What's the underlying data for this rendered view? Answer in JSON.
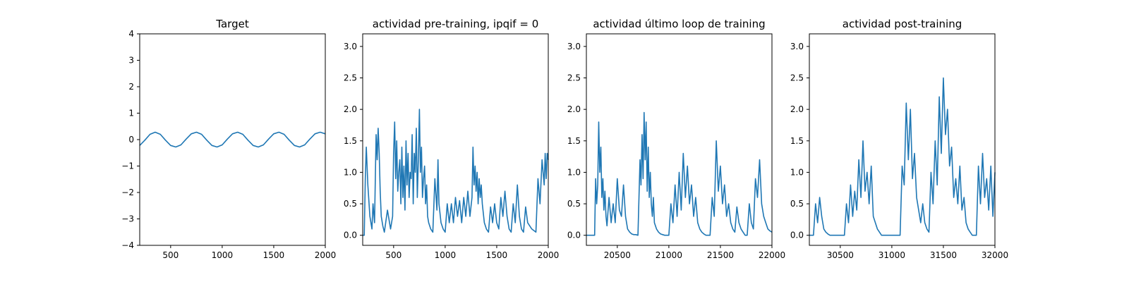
{
  "figure": {
    "background": "#ffffff",
    "line_color": "#1f77b4"
  },
  "chart_data": [
    {
      "type": "line",
      "title": "Target",
      "xlabel": "",
      "ylabel": "",
      "xlim": [
        200,
        2000
      ],
      "ylim": [
        -4,
        4
      ],
      "xticks": [
        500,
        1000,
        1500,
        2000
      ],
      "yticks": [
        -4,
        -3,
        -2,
        -1,
        0,
        1,
        2,
        3,
        4
      ],
      "series": [
        {
          "name": "target",
          "x": [
            200,
            250,
            300,
            350,
            400,
            450,
            500,
            550,
            600,
            650,
            700,
            750,
            800,
            850,
            900,
            950,
            1000,
            1050,
            1100,
            1150,
            1200,
            1250,
            1300,
            1350,
            1400,
            1450,
            1500,
            1550,
            1600,
            1650,
            1700,
            1750,
            1800,
            1850,
            1900,
            1950,
            2000
          ],
          "y": [
            -0.22,
            -0.02,
            0.2,
            0.28,
            0.2,
            -0.02,
            -0.22,
            -0.28,
            -0.2,
            0.02,
            0.22,
            0.28,
            0.2,
            -0.02,
            -0.22,
            -0.28,
            -0.2,
            0.02,
            0.22,
            0.28,
            0.2,
            -0.02,
            -0.22,
            -0.28,
            -0.2,
            0.02,
            0.22,
            0.28,
            0.2,
            -0.02,
            -0.22,
            -0.28,
            -0.2,
            0.02,
            0.22,
            0.28,
            0.22
          ]
        }
      ]
    },
    {
      "type": "line",
      "title": "actividad pre-training, ipqif = 0",
      "xlabel": "",
      "ylabel": "",
      "xlim": [
        200,
        2000
      ],
      "ylim": [
        -0.16,
        3.2
      ],
      "xticks": [
        500,
        1000,
        1500,
        2000
      ],
      "yticks": [
        0.0,
        0.5,
        1.0,
        1.5,
        2.0,
        2.5,
        3.0
      ],
      "ytick_labels": [
        "0.0",
        "0.5",
        "1.0",
        "1.5",
        "2.0",
        "2.5",
        "3.0"
      ],
      "series": [
        {
          "name": "actividad",
          "x": [
            200,
            215,
            225,
            235,
            250,
            270,
            290,
            300,
            315,
            330,
            340,
            350,
            360,
            370,
            380,
            395,
            410,
            440,
            470,
            490,
            500,
            510,
            520,
            530,
            540,
            550,
            560,
            570,
            580,
            590,
            600,
            610,
            620,
            630,
            640,
            650,
            660,
            670,
            680,
            690,
            700,
            710,
            720,
            730,
            740,
            750,
            760,
            770,
            780,
            790,
            800,
            810,
            820,
            830,
            840,
            860,
            880,
            900,
            920,
            930,
            940,
            960,
            980,
            1000,
            1020,
            1040,
            1060,
            1080,
            1100,
            1120,
            1140,
            1160,
            1180,
            1200,
            1220,
            1240,
            1260,
            1270,
            1280,
            1290,
            1300,
            1310,
            1320,
            1330,
            1340,
            1350,
            1360,
            1380,
            1400,
            1420,
            1440,
            1460,
            1480,
            1500,
            1520,
            1540,
            1560,
            1580,
            1600,
            1620,
            1640,
            1660,
            1680,
            1700,
            1720,
            1740,
            1760,
            1780,
            1800,
            1840,
            1880,
            1900,
            1920,
            1940,
            1960,
            1970,
            1980,
            1990,
            2000
          ],
          "y": [
            0.0,
            0.0,
            0.9,
            1.4,
            0.8,
            0.3,
            0.1,
            0.5,
            0.2,
            1.6,
            1.2,
            1.7,
            1.3,
            0.7,
            0.3,
            0.15,
            0.05,
            0.4,
            0.1,
            0.3,
            1.3,
            1.8,
            0.9,
            1.5,
            0.7,
            1.0,
            1.2,
            0.5,
            1.4,
            0.6,
            1.1,
            0.4,
            1.5,
            0.8,
            1.3,
            0.6,
            1.0,
            0.9,
            1.6,
            0.5,
            1.3,
            1.0,
            1.7,
            0.6,
            1.2,
            2.0,
            1.0,
            1.4,
            0.6,
            0.9,
            1.1,
            0.5,
            0.8,
            0.3,
            0.2,
            0.1,
            0.05,
            0.9,
            0.4,
            1.2,
            0.5,
            0.2,
            0.1,
            0.05,
            0.5,
            0.2,
            0.5,
            0.2,
            0.6,
            0.3,
            0.55,
            0.2,
            0.6,
            0.3,
            0.7,
            0.3,
            0.6,
            1.4,
            0.8,
            1.1,
            0.7,
            1.0,
            0.5,
            0.9,
            0.6,
            0.8,
            0.5,
            0.2,
            0.1,
            0.05,
            0.45,
            0.2,
            0.5,
            0.2,
            0.1,
            0.6,
            0.3,
            0.7,
            0.3,
            0.1,
            0.05,
            0.5,
            0.2,
            0.8,
            0.3,
            0.1,
            0.05,
            0.45,
            0.2,
            0.1,
            0.05,
            0.9,
            0.5,
            1.2,
            0.8,
            1.3,
            0.9,
            1.3,
            1.2
          ]
        }
      ]
    },
    {
      "type": "line",
      "title": "actividad último loop de training",
      "xlabel": "",
      "ylabel": "",
      "xlim": [
        20200,
        22000
      ],
      "ylim": [
        -0.16,
        3.2
      ],
      "xticks": [
        20500,
        21000,
        21500,
        22000
      ],
      "yticks": [
        0.0,
        0.5,
        1.0,
        1.5,
        2.0,
        2.5,
        3.0
      ],
      "ytick_labels": [
        "0.0",
        "0.5",
        "1.0",
        "1.5",
        "2.0",
        "2.5",
        "3.0"
      ],
      "series": [
        {
          "name": "actividad",
          "x": [
            20200,
            20280,
            20290,
            20300,
            20310,
            20320,
            20330,
            20340,
            20350,
            20360,
            20370,
            20380,
            20390,
            20400,
            20420,
            20440,
            20460,
            20480,
            20500,
            20520,
            20540,
            20560,
            20580,
            20600,
            20620,
            20640,
            20660,
            20680,
            20700,
            20720,
            20730,
            20740,
            20750,
            20760,
            20770,
            20780,
            20790,
            20800,
            20810,
            20820,
            20830,
            20840,
            20850,
            20860,
            20880,
            20900,
            20920,
            20940,
            20960,
            20980,
            21000,
            21020,
            21040,
            21060,
            21080,
            21100,
            21120,
            21140,
            21160,
            21180,
            21200,
            21220,
            21240,
            21260,
            21280,
            21300,
            21320,
            21340,
            21360,
            21380,
            21400,
            21420,
            21440,
            21460,
            21480,
            21500,
            21520,
            21540,
            21560,
            21580,
            21600,
            21620,
            21640,
            21660,
            21680,
            21700,
            21720,
            21740,
            21760,
            21780,
            21800,
            21820,
            21840,
            21860,
            21880,
            21900,
            21920,
            21940,
            21960,
            21980,
            22000
          ],
          "y": [
            0.0,
            0.0,
            0.9,
            0.5,
            0.8,
            1.8,
            1.0,
            1.4,
            0.6,
            0.9,
            0.4,
            0.7,
            0.3,
            0.15,
            0.6,
            0.2,
            0.5,
            0.2,
            0.9,
            0.4,
            0.3,
            0.8,
            0.3,
            0.1,
            0.05,
            0.02,
            0.01,
            0.01,
            0.0,
            1.2,
            0.8,
            1.6,
            0.9,
            1.95,
            1.2,
            1.8,
            0.7,
            1.4,
            0.6,
            1.0,
            0.5,
            0.3,
            0.6,
            0.2,
            0.1,
            0.05,
            0.02,
            0.01,
            0.0,
            0.0,
            0.0,
            0.5,
            0.2,
            0.8,
            0.3,
            1.0,
            0.4,
            1.3,
            0.6,
            1.1,
            0.5,
            0.8,
            0.3,
            0.6,
            0.2,
            0.1,
            0.05,
            0.02,
            0.0,
            0.0,
            0.0,
            0.6,
            0.3,
            1.5,
            0.7,
            1.1,
            0.5,
            0.8,
            0.3,
            0.5,
            0.2,
            0.1,
            0.05,
            0.45,
            0.2,
            0.1,
            0.05,
            0.0,
            0.0,
            0.5,
            0.2,
            0.1,
            0.9,
            0.6,
            1.2,
            0.5,
            0.3,
            0.2,
            0.1,
            0.07,
            0.05
          ]
        }
      ]
    },
    {
      "type": "line",
      "title": "actividad post-training",
      "xlabel": "",
      "ylabel": "",
      "xlim": [
        30200,
        32000
      ],
      "ylim": [
        -0.16,
        3.2
      ],
      "xticks": [
        30500,
        31000,
        31500,
        32000
      ],
      "yticks": [
        0.0,
        0.5,
        1.0,
        1.5,
        2.0,
        2.5,
        3.0
      ],
      "ytick_labels": [
        "0.0",
        "0.5",
        "1.0",
        "1.5",
        "2.0",
        "2.5",
        "3.0"
      ],
      "series": [
        {
          "name": "actividad",
          "x": [
            30200,
            30240,
            30260,
            30280,
            30300,
            30320,
            30340,
            30360,
            30380,
            30400,
            30420,
            30440,
            30460,
            30480,
            30500,
            30540,
            30560,
            30580,
            30600,
            30620,
            30640,
            30660,
            30680,
            30700,
            30720,
            30740,
            30760,
            30780,
            30800,
            30820,
            30840,
            30860,
            30880,
            30900,
            30940,
            30980,
            31000,
            31020,
            31060,
            31080,
            31100,
            31120,
            31140,
            31160,
            31180,
            31200,
            31220,
            31240,
            31260,
            31280,
            31300,
            31320,
            31340,
            31360,
            31380,
            31400,
            31420,
            31440,
            31460,
            31480,
            31500,
            31520,
            31540,
            31560,
            31580,
            31600,
            31620,
            31640,
            31660,
            31680,
            31700,
            31720,
            31740,
            31760,
            31780,
            31800,
            31820,
            31840,
            31860,
            31880,
            31900,
            31920,
            31940,
            31960,
            31980,
            32000
          ],
          "y": [
            0.0,
            0.0,
            0.5,
            0.2,
            0.6,
            0.3,
            0.1,
            0.05,
            0.02,
            0.0,
            0.0,
            0.0,
            0.0,
            0.0,
            0.0,
            0.0,
            0.5,
            0.2,
            0.8,
            0.3,
            0.7,
            0.4,
            1.2,
            0.6,
            1.5,
            0.7,
            1.0,
            0.5,
            1.1,
            0.3,
            0.2,
            0.1,
            0.05,
            0.0,
            0.0,
            0.0,
            0.0,
            0.0,
            0.0,
            0.0,
            1.1,
            0.8,
            2.1,
            1.2,
            2.0,
            0.9,
            1.3,
            0.6,
            0.4,
            0.2,
            0.5,
            0.2,
            0.1,
            0.05,
            1.0,
            0.5,
            1.5,
            0.8,
            2.2,
            1.3,
            2.5,
            1.6,
            2.0,
            1.1,
            1.4,
            0.6,
            0.9,
            0.5,
            1.1,
            0.4,
            0.6,
            0.2,
            0.1,
            0.05,
            0.0,
            0.0,
            0.0,
            1.1,
            0.5,
            1.3,
            0.6,
            0.9,
            0.4,
            1.1,
            0.3,
            1.0
          ]
        }
      ]
    }
  ]
}
